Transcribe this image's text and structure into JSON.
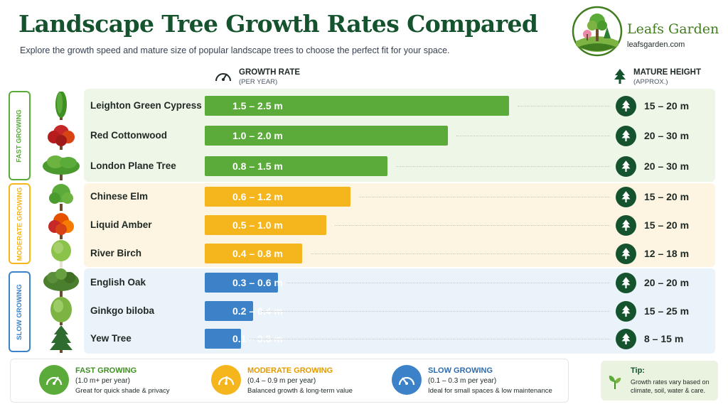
{
  "header": {
    "title": "Landscape Tree Growth Rates Compared",
    "subtitle": "Explore the growth speed and mature size of popular landscape trees to choose the perfect fit for your space."
  },
  "brand": {
    "name": "Leafs Garden",
    "url": "leafsgarden.com"
  },
  "columns": {
    "growth_rate": {
      "label": "GROWTH RATE",
      "sub": "(PER YEAR)",
      "icon": "gauge-icon"
    },
    "mature_height": {
      "label": "MATURE HEIGHT",
      "sub": "(APPROX.)",
      "icon": "tree-icon"
    }
  },
  "categories": [
    {
      "label": "FAST GROWING",
      "color": "#5aab3a",
      "band": "#eef6e8"
    },
    {
      "label": "MODERATE GROWING",
      "color": "#f5b51c",
      "band": "#fdf4e2"
    },
    {
      "label": "SLOW GROWING",
      "color": "#3b82c9",
      "band": "#eaf2fa"
    }
  ],
  "chart_data": {
    "type": "bar",
    "orientation": "horizontal",
    "unit": "m per year",
    "xlim": [
      0,
      3.2
    ],
    "categories": [
      "Leighton Green Cypress",
      "Red Cottonwood",
      "London Plane Tree",
      "Chinese Elm",
      "Liquid Amber",
      "River Birch",
      "English Oak",
      "Ginkgo biloba",
      "Yew Tree"
    ],
    "ranges": [
      [
        1.5,
        2.5
      ],
      [
        1.0,
        2.0
      ],
      [
        0.8,
        1.5
      ],
      [
        0.6,
        1.2
      ],
      [
        0.5,
        1.0
      ],
      [
        0.4,
        0.8
      ],
      [
        0.3,
        0.6
      ],
      [
        0.2,
        0.4
      ],
      [
        0.1,
        0.3
      ]
    ],
    "rows": [
      {
        "name": "Leighton Green Cypress",
        "category": 0,
        "growth_min": 1.5,
        "growth_max": 2.5,
        "growth_label": "1.5 – 2.5 m",
        "height_label": "15 – 20 m",
        "tree": "cypress"
      },
      {
        "name": "Red Cottonwood",
        "category": 0,
        "growth_min": 1.0,
        "growth_max": 2.0,
        "growth_label": "1.0 – 2.0 m",
        "height_label": "20 – 30 m",
        "tree": "red"
      },
      {
        "name": "London Plane Tree",
        "category": 0,
        "growth_min": 0.8,
        "growth_max": 1.5,
        "growth_label": "0.8 – 1.5 m",
        "height_label": "20 – 30 m",
        "tree": "broad"
      },
      {
        "name": "Chinese Elm",
        "category": 1,
        "growth_min": 0.6,
        "growth_max": 1.2,
        "growth_label": "0.6 – 1.2 m",
        "height_label": "15 – 20 m",
        "tree": "round"
      },
      {
        "name": "Liquid Amber",
        "category": 1,
        "growth_min": 0.5,
        "growth_max": 1.0,
        "growth_label": "0.5 – 1.0 m",
        "height_label": "15 – 20 m",
        "tree": "autumn"
      },
      {
        "name": "River Birch",
        "category": 1,
        "growth_min": 0.4,
        "growth_max": 0.8,
        "growth_label": "0.4 – 0.8 m",
        "height_label": "12 – 18 m",
        "tree": "birch"
      },
      {
        "name": "English Oak",
        "category": 2,
        "growth_min": 0.3,
        "growth_max": 0.6,
        "growth_label": "0.3 – 0.6 m",
        "height_label": "20 – 20 m",
        "tree": "oak"
      },
      {
        "name": "Ginkgo biloba",
        "category": 2,
        "growth_min": 0.2,
        "growth_max": 0.4,
        "growth_label": "0.2 – 0.4 m",
        "height_label": "15 – 25 m",
        "tree": "ginkgo"
      },
      {
        "name": "Yew Tree",
        "category": 2,
        "growth_min": 0.1,
        "growth_max": 0.3,
        "growth_label": "0.1 – 0.3 m",
        "height_label": "8 – 15 m",
        "tree": "yew"
      }
    ]
  },
  "legend": [
    {
      "title": "FAST GROWING",
      "rate": "(1.0 m+ per year)",
      "desc": "Great for quick shade & privacy",
      "color": "#5aab3a"
    },
    {
      "title": "MODERATE GROWING",
      "rate": "(0.4 – 0.9 m per year)",
      "desc": "Balanced growth & long-term value",
      "color": "#f5b51c"
    },
    {
      "title": "SLOW GROWING",
      "rate": "(0.1 – 0.3 m per year)",
      "desc": "Ideal for small spaces & low maintenance",
      "color": "#3b82c9"
    }
  ],
  "tip": {
    "title": "Tip:",
    "lines": [
      "Growth rates vary based on",
      "climate, soil, water & care."
    ]
  }
}
